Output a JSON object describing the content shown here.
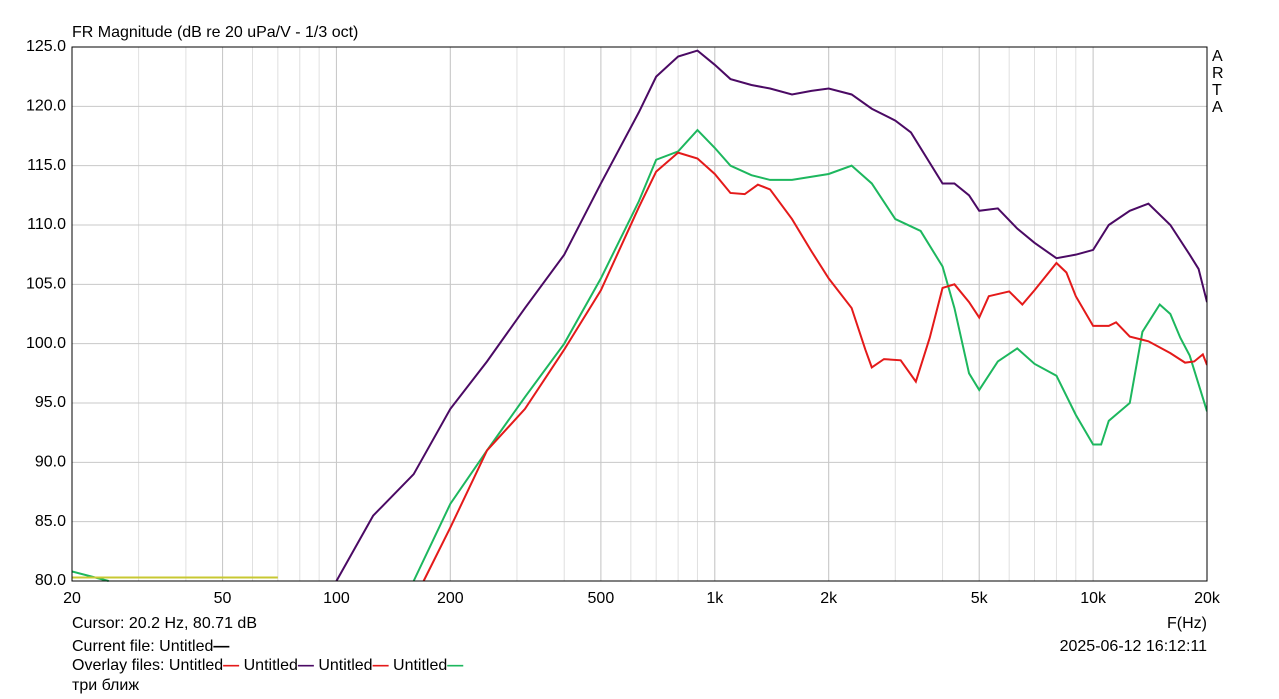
{
  "chart_data": {
    "type": "line",
    "title": "FR Magnitude (dB re 20 uPa/V - 1/3 oct)",
    "x_label": "F(Hz)",
    "side_label": "ARTA",
    "log_x": true,
    "grid": true,
    "xlim": [
      20,
      20000
    ],
    "xticks": [
      20,
      50,
      100,
      200,
      500,
      {
        "value": 1000,
        "label": "1k"
      },
      {
        "value": 2000,
        "label": "2k"
      },
      {
        "value": 5000,
        "label": "5k"
      },
      {
        "value": 10000,
        "label": "10k"
      },
      {
        "value": 20000,
        "label": "20k"
      }
    ],
    "ylim": [
      80,
      125
    ],
    "yticks": [
      {
        "value": 80,
        "label": "80.0"
      },
      {
        "value": 85,
        "label": "85.0"
      },
      {
        "value": 90,
        "label": "90.0"
      },
      {
        "value": 95,
        "label": "95.0"
      },
      {
        "value": 100,
        "label": "100.0"
      },
      {
        "value": 105,
        "label": "105.0"
      },
      {
        "value": 110,
        "label": "110.0"
      },
      {
        "value": 115,
        "label": "115.0"
      },
      {
        "value": 120,
        "label": "120.0"
      },
      {
        "value": 125,
        "label": "125.0"
      }
    ],
    "series": [
      {
        "color": "#4b0a64",
        "x": [
          100,
          125,
          160,
          200,
          250,
          315,
          400,
          500,
          630,
          700,
          800,
          900,
          1000,
          1100,
          1250,
          1400,
          1600,
          1800,
          2000,
          2300,
          2600,
          3000,
          3300,
          4000,
          4300,
          4700,
          5000,
          5600,
          6300,
          7000,
          8000,
          9000,
          10000,
          11000,
          12500,
          14000,
          16000,
          18000,
          19000,
          20000
        ],
        "values": [
          80,
          85.5,
          89,
          94.5,
          98.5,
          103,
          107.5,
          113.5,
          119.5,
          122.5,
          124.2,
          124.7,
          123.5,
          122.3,
          121.8,
          121.5,
          121,
          121.3,
          121.5,
          121,
          119.8,
          118.8,
          117.8,
          113.5,
          113.5,
          112.5,
          111.2,
          111.4,
          109.7,
          108.5,
          107.2,
          107.5,
          107.9,
          110,
          111.2,
          111.8,
          110,
          107.5,
          106.3,
          103.5
        ]
      },
      {
        "color": "#1db75e",
        "x": [
          20,
          25,
          null,
          160,
          200,
          250,
          315,
          400,
          500,
          630,
          700,
          800,
          900,
          1000,
          1100,
          1250,
          1400,
          1600,
          2000,
          2300,
          2600,
          3000,
          3500,
          4000,
          4300,
          4700,
          5000,
          5600,
          6300,
          7000,
          8000,
          9000,
          10000,
          10500,
          11000,
          12500,
          13500,
          15000,
          16000,
          17000,
          18000,
          20000
        ],
        "values": [
          80.8,
          80,
          null,
          80,
          86.5,
          91,
          95.5,
          100,
          105.5,
          112,
          115.5,
          116.2,
          118,
          116.5,
          115,
          114.2,
          113.8,
          113.8,
          114.3,
          115,
          113.5,
          110.5,
          109.5,
          106.5,
          103,
          97.5,
          96.1,
          98.5,
          99.6,
          98.3,
          97.3,
          94,
          91.5,
          91.5,
          93.5,
          95,
          101,
          103.3,
          102.5,
          100.5,
          99,
          94.3
        ]
      },
      {
        "color": "#e41a1a",
        "x": [
          170,
          200,
          250,
          315,
          400,
          500,
          630,
          700,
          800,
          900,
          1000,
          1100,
          1200,
          1300,
          1400,
          1600,
          1800,
          2000,
          2300,
          2500,
          2600,
          2800,
          3100,
          3400,
          3700,
          4000,
          4300,
          4700,
          5000,
          5300,
          6000,
          6500,
          7000,
          8000,
          8500,
          9000,
          10000,
          11000,
          11500,
          12500,
          14000,
          16000,
          17500,
          18500,
          19500,
          20000
        ],
        "values": [
          80,
          84.5,
          91,
          94.5,
          99.5,
          104.5,
          111.5,
          114.5,
          116.1,
          115.6,
          114.3,
          112.7,
          112.6,
          113.4,
          113,
          110.5,
          107.8,
          105.5,
          103,
          99.5,
          98,
          98.7,
          98.6,
          96.8,
          100.5,
          104.7,
          105,
          103.5,
          102.2,
          104,
          104.4,
          103.3,
          104.5,
          106.8,
          106,
          104,
          101.5,
          101.5,
          101.8,
          100.6,
          100.2,
          99.2,
          98.4,
          98.5,
          99.1,
          98.2
        ]
      },
      {
        "color": "#c8c832",
        "x": [
          20,
          70
        ],
        "values": [
          80.3,
          80.3
        ]
      }
    ]
  },
  "footer": {
    "cursor": "Cursor: 20.2 Hz, 80.71 dB",
    "current_label": "Current file:",
    "current_file": {
      "name": "Untitled",
      "color": "#000000"
    },
    "overlay_label": "Overlay files:",
    "overlay_files": [
      {
        "name": "Untitled",
        "color": "#e41a1a"
      },
      {
        "name": "Untitled",
        "color": "#4b0a64"
      },
      {
        "name": "Untitled",
        "color": "#e41a1a"
      },
      {
        "name": "Untitled",
        "color": "#1db75e"
      }
    ],
    "datetime": "2025-06-12  16:12:11",
    "note": "три ближ"
  }
}
